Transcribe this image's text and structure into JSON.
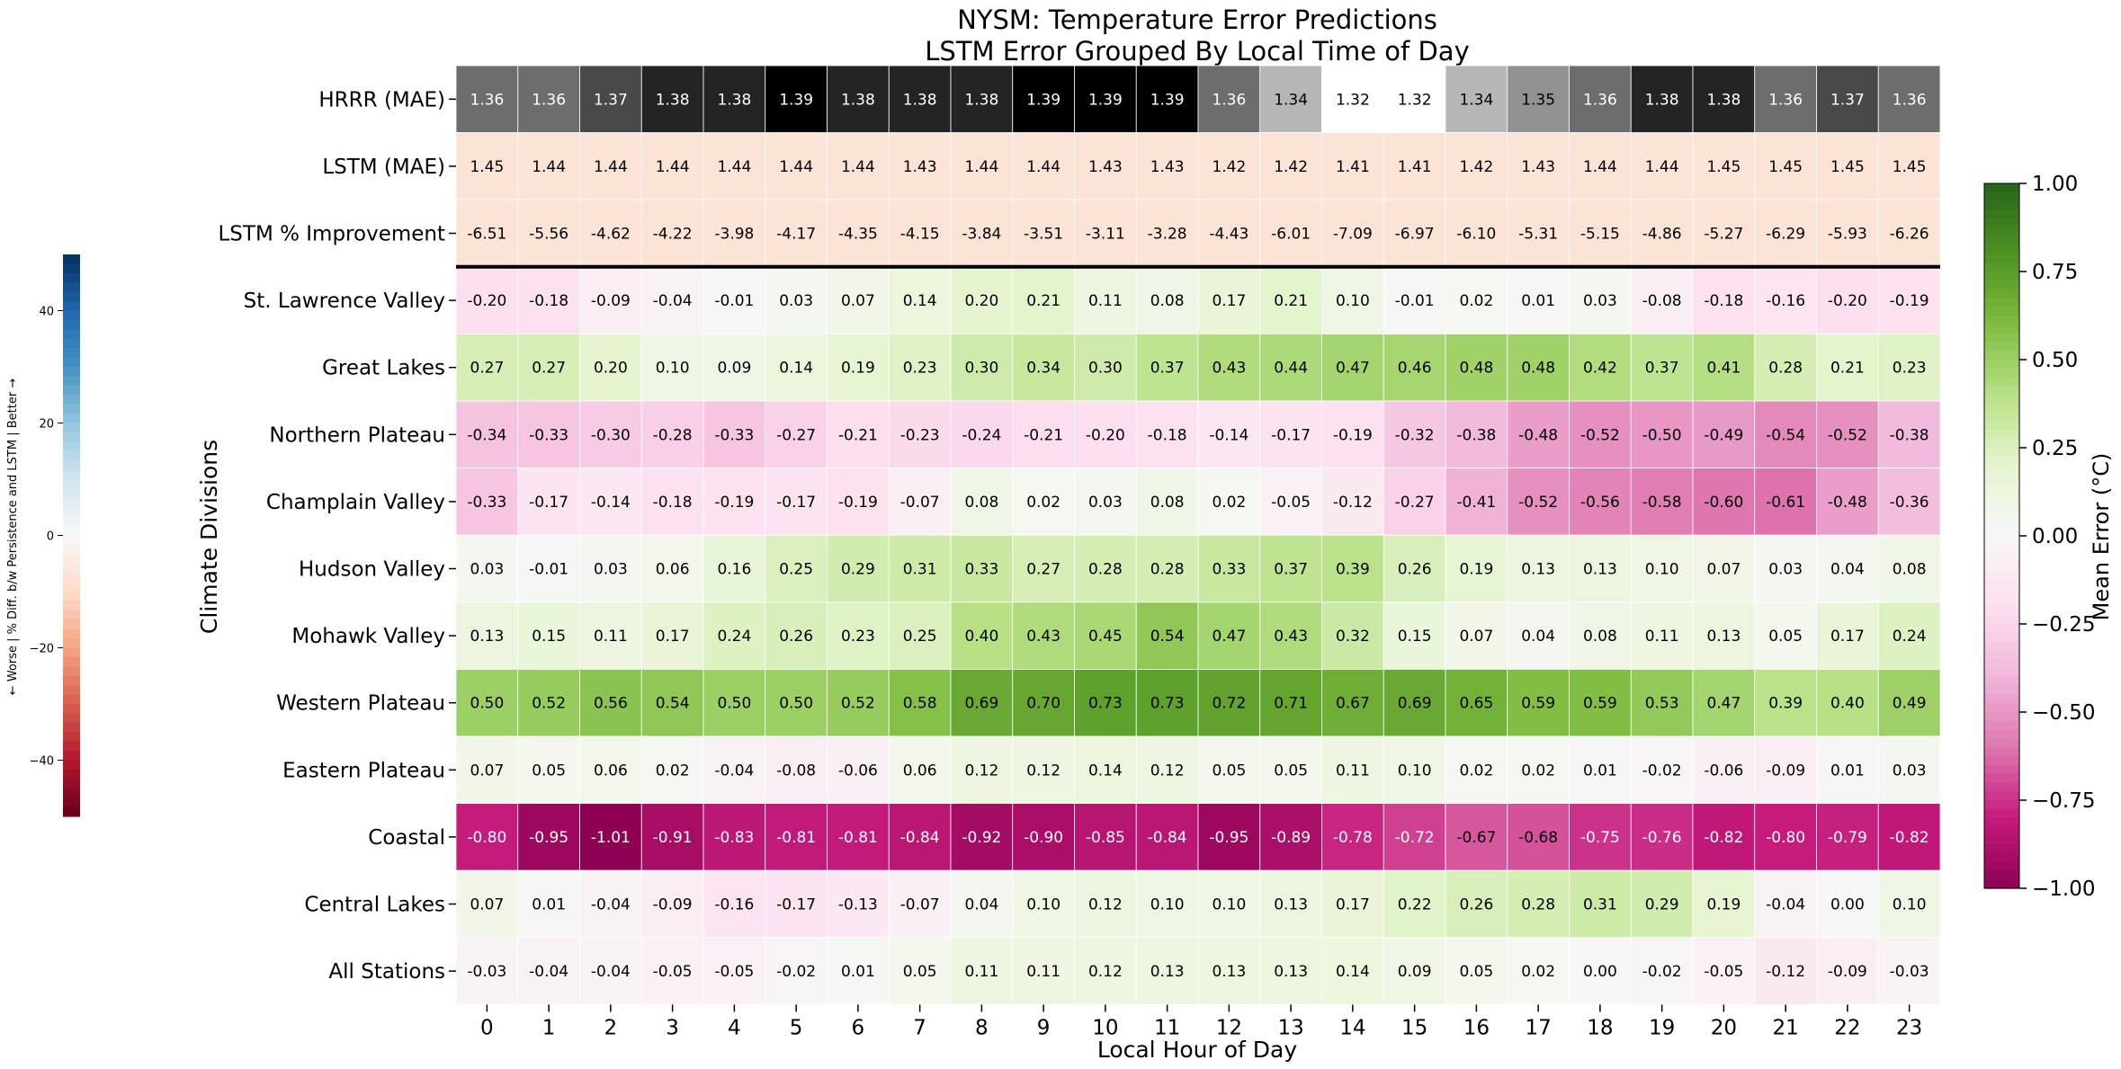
{
  "chart_data": {
    "type": "heatmap",
    "title_line1": "NYSM: Temperature Error Predictions",
    "title_line2": "LSTM Error Grouped By Local Time of Day",
    "xlabel": "Local Hour of Day",
    "ylabel": "Climate Divisions",
    "hours": [
      "0",
      "1",
      "2",
      "3",
      "4",
      "5",
      "6",
      "7",
      "8",
      "9",
      "10",
      "11",
      "12",
      "13",
      "14",
      "15",
      "16",
      "17",
      "18",
      "19",
      "20",
      "21",
      "22",
      "23"
    ],
    "rows": [
      {
        "label": "HRRR (MAE)",
        "scale": "grey",
        "values": [
          1.36,
          1.36,
          1.37,
          1.38,
          1.38,
          1.39,
          1.38,
          1.38,
          1.38,
          1.39,
          1.39,
          1.39,
          1.36,
          1.34,
          1.32,
          1.32,
          1.34,
          1.35,
          1.36,
          1.38,
          1.38,
          1.36,
          1.37,
          1.36
        ]
      },
      {
        "label": "LSTM (MAE)",
        "scale": "diff",
        "values": [
          1.45,
          1.44,
          1.44,
          1.44,
          1.44,
          1.44,
          1.44,
          1.43,
          1.44,
          1.44,
          1.43,
          1.43,
          1.42,
          1.42,
          1.41,
          1.41,
          1.42,
          1.43,
          1.44,
          1.44,
          1.45,
          1.45,
          1.45,
          1.45
        ]
      },
      {
        "label": "LSTM % Improvement",
        "scale": "diff",
        "values": [
          -6.51,
          -5.56,
          -4.62,
          -4.22,
          -3.98,
          -4.17,
          -4.35,
          -4.15,
          -3.84,
          -3.51,
          -3.11,
          -3.28,
          -4.43,
          -6.01,
          -7.09,
          -6.97,
          -6.1,
          -5.31,
          -5.15,
          -4.86,
          -5.27,
          -6.29,
          -5.93,
          -6.26
        ]
      },
      {
        "label": "St. Lawrence Valley",
        "scale": "error",
        "values": [
          -0.2,
          -0.18,
          -0.09,
          -0.04,
          -0.01,
          0.03,
          0.07,
          0.14,
          0.2,
          0.21,
          0.11,
          0.08,
          0.17,
          0.21,
          0.1,
          -0.01,
          0.02,
          0.01,
          0.03,
          -0.08,
          -0.18,
          -0.16,
          -0.2,
          -0.19
        ]
      },
      {
        "label": "Great Lakes",
        "scale": "error",
        "values": [
          0.27,
          0.27,
          0.2,
          0.1,
          0.09,
          0.14,
          0.19,
          0.23,
          0.3,
          0.34,
          0.3,
          0.37,
          0.43,
          0.44,
          0.47,
          0.46,
          0.48,
          0.48,
          0.42,
          0.37,
          0.41,
          0.28,
          0.21,
          0.23
        ]
      },
      {
        "label": "Northern Plateau",
        "scale": "error",
        "values": [
          -0.34,
          -0.33,
          -0.3,
          -0.28,
          -0.33,
          -0.27,
          -0.21,
          -0.23,
          -0.24,
          -0.21,
          -0.2,
          -0.18,
          -0.14,
          -0.17,
          -0.19,
          -0.32,
          -0.38,
          -0.48,
          -0.52,
          -0.5,
          -0.49,
          -0.54,
          -0.52,
          -0.38
        ]
      },
      {
        "label": "Champlain Valley",
        "scale": "error",
        "values": [
          -0.33,
          -0.17,
          -0.14,
          -0.18,
          -0.19,
          -0.17,
          -0.19,
          -0.07,
          0.08,
          0.02,
          0.03,
          0.08,
          0.02,
          -0.05,
          -0.12,
          -0.27,
          -0.41,
          -0.52,
          -0.56,
          -0.58,
          -0.6,
          -0.61,
          -0.48,
          -0.36
        ]
      },
      {
        "label": "Hudson Valley",
        "scale": "error",
        "values": [
          0.03,
          -0.01,
          0.03,
          0.06,
          0.16,
          0.25,
          0.29,
          0.31,
          0.33,
          0.27,
          0.28,
          0.28,
          0.33,
          0.37,
          0.39,
          0.26,
          0.19,
          0.13,
          0.13,
          0.1,
          0.07,
          0.03,
          0.04,
          0.08
        ]
      },
      {
        "label": "Mohawk Valley",
        "scale": "error",
        "values": [
          0.13,
          0.15,
          0.11,
          0.17,
          0.24,
          0.26,
          0.23,
          0.25,
          0.4,
          0.43,
          0.45,
          0.54,
          0.47,
          0.43,
          0.32,
          0.15,
          0.07,
          0.04,
          0.08,
          0.11,
          0.13,
          0.05,
          0.17,
          0.24
        ]
      },
      {
        "label": "Western Plateau",
        "scale": "error",
        "values": [
          0.5,
          0.52,
          0.56,
          0.54,
          0.5,
          0.5,
          0.52,
          0.58,
          0.69,
          0.7,
          0.73,
          0.73,
          0.72,
          0.71,
          0.67,
          0.69,
          0.65,
          0.59,
          0.59,
          0.53,
          0.47,
          0.39,
          0.4,
          0.49
        ]
      },
      {
        "label": "Eastern Plateau",
        "scale": "error",
        "values": [
          0.07,
          0.05,
          0.06,
          0.02,
          -0.04,
          -0.08,
          -0.06,
          0.06,
          0.12,
          0.12,
          0.14,
          0.12,
          0.05,
          0.05,
          0.11,
          0.1,
          0.02,
          0.02,
          0.01,
          -0.02,
          -0.06,
          -0.09,
          0.01,
          0.03
        ]
      },
      {
        "label": "Coastal",
        "scale": "error",
        "values": [
          -0.8,
          -0.95,
          -1.01,
          -0.91,
          -0.83,
          -0.81,
          -0.81,
          -0.84,
          -0.92,
          -0.9,
          -0.85,
          -0.84,
          -0.95,
          -0.89,
          -0.78,
          -0.72,
          -0.67,
          -0.68,
          -0.75,
          -0.76,
          -0.82,
          -0.8,
          -0.79,
          -0.82
        ]
      },
      {
        "label": "Central Lakes",
        "scale": "error",
        "values": [
          0.07,
          0.01,
          -0.04,
          -0.09,
          -0.16,
          -0.17,
          -0.13,
          -0.07,
          0.04,
          0.1,
          0.12,
          0.1,
          0.1,
          0.13,
          0.17,
          0.22,
          0.26,
          0.28,
          0.31,
          0.29,
          0.19,
          -0.04,
          -0.0,
          0.1
        ]
      },
      {
        "label": "All Stations",
        "scale": "error",
        "values": [
          -0.03,
          -0.04,
          -0.04,
          -0.05,
          -0.05,
          -0.02,
          0.01,
          0.05,
          0.11,
          0.11,
          0.12,
          0.13,
          0.13,
          0.13,
          0.14,
          0.09,
          0.05,
          0.02,
          0.0,
          -0.02,
          -0.05,
          -0.12,
          -0.09,
          -0.03
        ]
      }
    ],
    "colorbar_right": {
      "label": "Mean Error (°C)",
      "colormap": "PiYG",
      "range": [
        -1.0,
        1.0
      ],
      "ticks": [
        "1.00",
        "0.75",
        "0.50",
        "0.25",
        "0.00",
        "−0.25",
        "−0.50",
        "−0.75",
        "−1.00"
      ]
    },
    "colorbar_left": {
      "label": "← Worse | % Diff. b/w Persistence and LSTM | Better →",
      "colormap": "RdBu",
      "range": [
        -50,
        50
      ],
      "ticks": [
        "40",
        "20",
        "0",
        "−20",
        "−40"
      ]
    }
  }
}
